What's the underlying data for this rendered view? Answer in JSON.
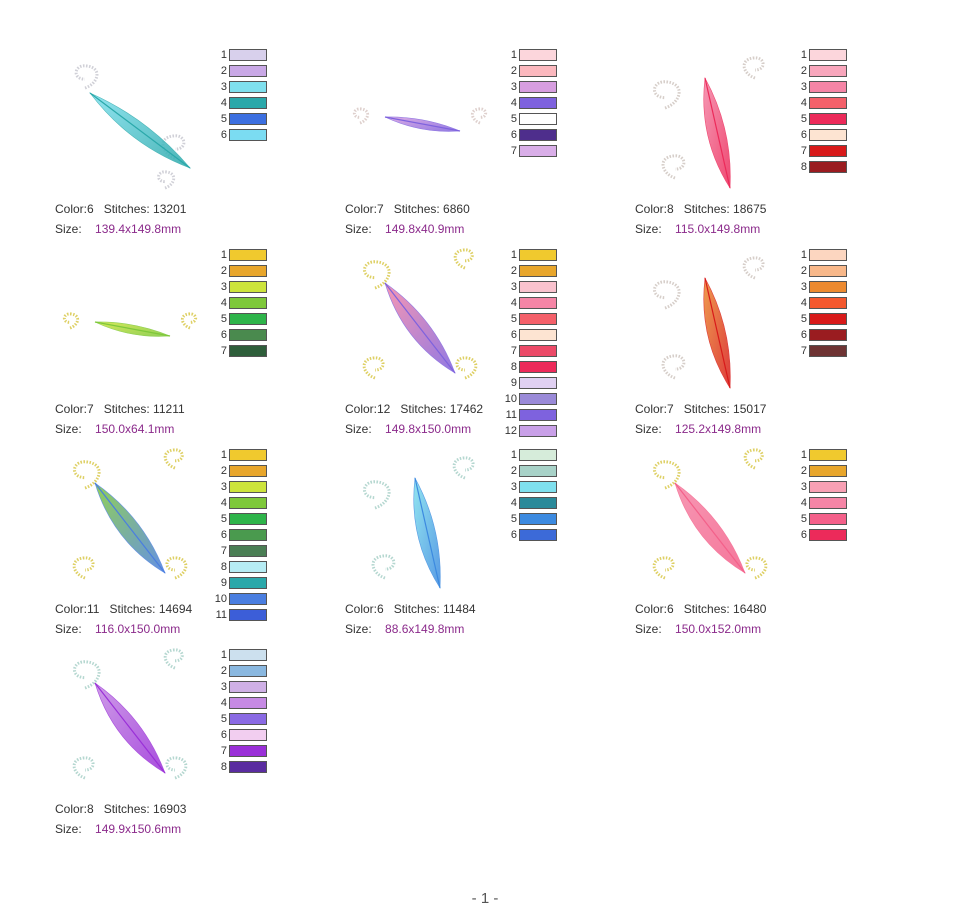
{
  "designs": [
    {
      "color_label": "Color:6",
      "stitches_label": "Stitches: 13201",
      "size_label": "Size:",
      "size_value": "139.4x149.8mm",
      "motif": "feather-diagonal",
      "palette": [
        "#d8d0ec",
        "#c9a8e6",
        "#7fe0ee",
        "#2aa8aa",
        "#3c6fe0",
        "#7bdcf2"
      ],
      "numbers": [
        "1",
        "2",
        "3",
        "4",
        "5",
        "6"
      ],
      "icon": "feather-teal-thumbnail"
    },
    {
      "color_label": "Color:7",
      "stitches_label": "Stitches: 6860",
      "size_label": "Size:",
      "size_value": "149.8x40.9mm",
      "motif": "feather-horizontal",
      "palette": [
        "#fcd6dc",
        "#fbb8be",
        "#d79ee0",
        "#7e62de",
        "#ffffff",
        "#4e2e8c",
        "#d9aee8"
      ],
      "numbers": [
        "1",
        "2",
        "3",
        "4",
        "5",
        "6",
        "7"
      ],
      "icon": "feather-violet-thumbnail"
    },
    {
      "color_label": "Color:8",
      "stitches_label": "Stitches: 18675",
      "size_label": "Size:",
      "size_value": "115.0x149.8mm",
      "motif": "feather-curl",
      "palette": [
        "#fcd6dc",
        "#f8a6bc",
        "#f585a6",
        "#f4606a",
        "#ec2a5a",
        "#fde4d2",
        "#d81a1a",
        "#9a1c20"
      ],
      "numbers": [
        "1",
        "2",
        "3",
        "4",
        "5",
        "6",
        "7",
        "8"
      ],
      "icon": "feather-red-thumbnail"
    },
    {
      "color_label": "Color:7",
      "stitches_label": "Stitches: 11211",
      "size_label": "Size:",
      "size_value": "150.0x64.1mm",
      "motif": "feather-horizontal",
      "palette": [
        "#f0c92e",
        "#e8a62c",
        "#cde43c",
        "#7ec83a",
        "#2eb44a",
        "#4a8a4e",
        "#2e5e3a"
      ],
      "numbers": [
        "1",
        "2",
        "3",
        "4",
        "5",
        "6",
        "7"
      ],
      "icon": "feather-green-thumbnail"
    },
    {
      "color_label": "Color:12",
      "stitches_label": "Stitches: 17462",
      "size_label": "Size:",
      "size_value": "149.8x150.0mm",
      "motif": "feather-corner",
      "palette": [
        "#f0c92e",
        "#e8a62c",
        "#f9c2ce",
        "#f585a6",
        "#f4606a",
        "#fde4d2",
        "#ec4a68",
        "#ec2a5a",
        "#e0d0f2",
        "#9a8ad8",
        "#7e62de",
        "#c9a0e8"
      ],
      "numbers": [
        "1",
        "2",
        "3",
        "4",
        "5",
        "6",
        "7",
        "8",
        "9",
        "10",
        "11",
        "12"
      ],
      "icon": "feather-pink-purple-thumbnail"
    },
    {
      "color_label": "Color:7",
      "stitches_label": "Stitches: 15017",
      "size_label": "Size:",
      "size_value": "125.2x149.8mm",
      "motif": "feather-curl",
      "palette": [
        "#fcd6c0",
        "#f8b88a",
        "#ec8a30",
        "#f4582e",
        "#d81a1a",
        "#9a1c20",
        "#6e3434"
      ],
      "numbers": [
        "1",
        "2",
        "3",
        "4",
        "5",
        "6",
        "7"
      ],
      "icon": "feather-orange-thumbnail"
    },
    {
      "color_label": "Color:11",
      "stitches_label": "Stitches: 14694",
      "size_label": "Size:",
      "size_value": "116.0x150.0mm",
      "motif": "feather-corner",
      "palette": [
        "#f0c92e",
        "#e8a62c",
        "#cde43c",
        "#7ec83a",
        "#2eb44a",
        "#4a9a4e",
        "#4a7e54",
        "#b6ecf4",
        "#2aa8aa",
        "#4a7ee0",
        "#3c5ed8"
      ],
      "numbers": [
        "1",
        "2",
        "3",
        "4",
        "5",
        "6",
        "7",
        "8",
        "9",
        "10",
        "11"
      ],
      "icon": "feather-green-blue-thumbnail"
    },
    {
      "color_label": "Color:6",
      "stitches_label": "Stitches: 11484",
      "size_label": "Size:",
      "size_value": "88.6x149.8mm",
      "motif": "feather-curl",
      "palette": [
        "#d6ecda",
        "#a8d2c8",
        "#7fe0ee",
        "#2a8a9a",
        "#3c8ae0",
        "#3c6ad8"
      ],
      "numbers": [
        "1",
        "2",
        "3",
        "4",
        "5",
        "6"
      ],
      "icon": "feather-blue-thumbnail"
    },
    {
      "color_label": "Color:6",
      "stitches_label": "Stitches: 16480",
      "size_label": "Size:",
      "size_value": "150.0x152.0mm",
      "motif": "feather-corner",
      "palette": [
        "#f0c92e",
        "#e8a62c",
        "#f8a0b4",
        "#f585a6",
        "#f4608a",
        "#ec2a5a"
      ],
      "numbers": [
        "1",
        "2",
        "3",
        "4",
        "5",
        "6"
      ],
      "icon": "feather-rose-gold-thumbnail"
    },
    {
      "color_label": "Color:8",
      "stitches_label": "Stitches: 16903",
      "size_label": "Size:",
      "size_value": "149.9x150.6mm",
      "motif": "feather-corner",
      "palette": [
        "#cce0ee",
        "#8ab8e0",
        "#cfb0e6",
        "#c68ae4",
        "#8a6ae4",
        "#f2cef0",
        "#9a30d8",
        "#5a2ca0"
      ],
      "numbers": [
        "1",
        "2",
        "3",
        "4",
        "5",
        "6",
        "7",
        "8"
      ],
      "icon": "feather-purple-thumbnail"
    }
  ],
  "footer": {
    "page_label": "- 1 -"
  }
}
